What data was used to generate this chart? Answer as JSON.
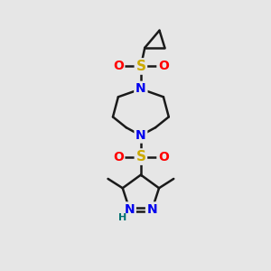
{
  "bg_color": "#e6e6e6",
  "bond_color": "#1a1a1a",
  "N_color": "#0000ee",
  "O_color": "#ff0000",
  "S_color": "#ccaa00",
  "H_color": "#007070",
  "font_size_S": 11,
  "font_size_N": 10,
  "font_size_O": 10,
  "font_size_H": 8,
  "line_width": 1.8,
  "fig_w": 3.0,
  "fig_h": 3.0,
  "dpi": 100,
  "xlim": [
    0,
    10
  ],
  "ylim": [
    0,
    10
  ]
}
